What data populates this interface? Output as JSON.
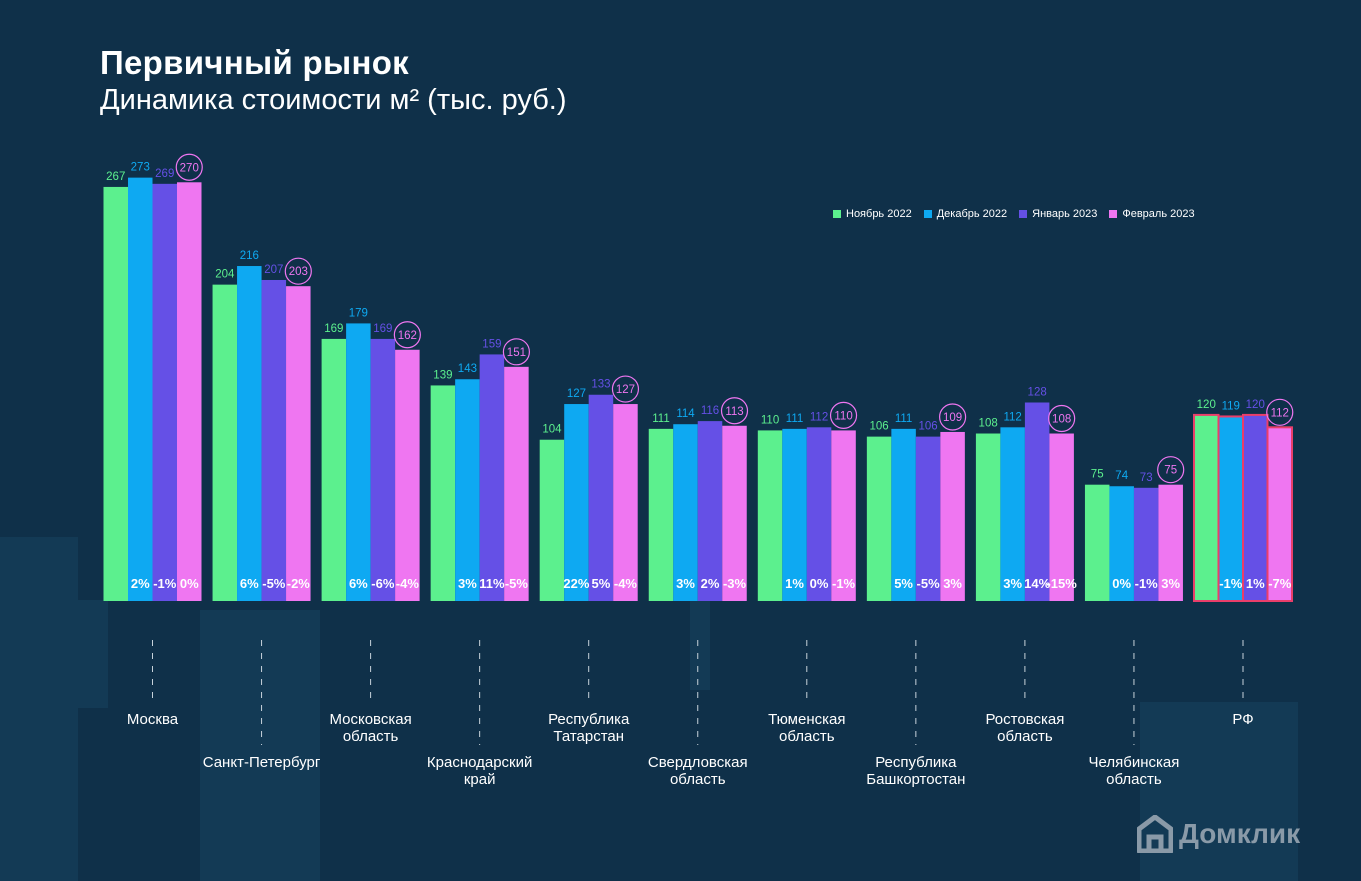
{
  "title": "Первичный рынок",
  "subtitle": "Динамика стоимости м² (тыс. руб.)",
  "brand": "Домклик",
  "colors": {
    "background": "#0f3049",
    "series": [
      "#5cf08e",
      "#0ea9f2",
      "#6550e6",
      "#ef76f1"
    ],
    "highlight_border": "#ea3e6a"
  },
  "chart_data": {
    "type": "bar",
    "title": "Первичный рынок",
    "subtitle": "Динамика стоимости м² (тыс. руб.)",
    "ylabel": "тыс. руб.",
    "ylim": [
      0,
      280
    ],
    "grid": false,
    "legend_position": "top-right",
    "categories": [
      "Москва",
      "Санкт-Петербург",
      "Московская область",
      "Краснодарский край",
      "Республика Татарстан",
      "Свердловская область",
      "Тюменская область",
      "Республика Башкортостан",
      "Ростовская область",
      "Челябинская область",
      "РФ"
    ],
    "series": [
      {
        "name": "Ноябрь 2022",
        "values": [
          267,
          204,
          169,
          139,
          104,
          111,
          110,
          106,
          108,
          75,
          120
        ]
      },
      {
        "name": "Декабрь 2022",
        "values": [
          273,
          216,
          179,
          143,
          127,
          114,
          111,
          111,
          112,
          74,
          119
        ]
      },
      {
        "name": "Январь 2023",
        "values": [
          269,
          207,
          169,
          159,
          133,
          116,
          112,
          106,
          128,
          73,
          120
        ]
      },
      {
        "name": "Февраль 2023",
        "values": [
          270,
          203,
          162,
          151,
          127,
          113,
          110,
          109,
          108,
          75,
          112
        ]
      }
    ],
    "changes": [
      [
        "2%",
        "-1%",
        "0%"
      ],
      [
        "6%",
        "-5%",
        "-2%"
      ],
      [
        "6%",
        "-6%",
        "-4%"
      ],
      [
        "3%",
        "11%",
        "-5%"
      ],
      [
        "22%",
        "5%",
        "-4%"
      ],
      [
        "3%",
        "2%",
        "-3%"
      ],
      [
        "1%",
        "0%",
        "-1%"
      ],
      [
        "5%",
        "-5%",
        "3%"
      ],
      [
        "3%",
        "14%",
        "-15%"
      ],
      [
        "0%",
        "-1%",
        "3%"
      ],
      [
        "-1%",
        "1%",
        "-7%"
      ]
    ],
    "highlighted_category": "РФ"
  },
  "category_label_lines": [
    [
      "Москва"
    ],
    [
      "Санкт-Петербург"
    ],
    [
      "Московская",
      "область"
    ],
    [
      "Краснодарский",
      "край"
    ],
    [
      "Республика",
      "Татарстан"
    ],
    [
      "Свердловская",
      "область"
    ],
    [
      "Тюменская",
      "область"
    ],
    [
      "Республика",
      "Башкортостан"
    ],
    [
      "Ростовская",
      "область"
    ],
    [
      "Челябинская",
      "область"
    ],
    [
      "РФ"
    ]
  ]
}
